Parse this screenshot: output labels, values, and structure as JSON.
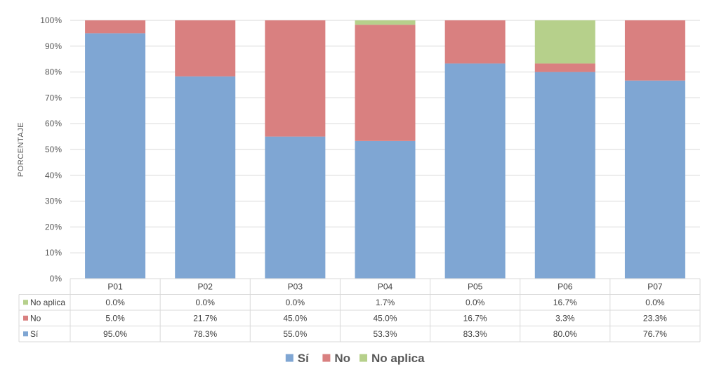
{
  "chart_data": {
    "type": "bar",
    "stacked": true,
    "title": "",
    "xlabel": "",
    "ylabel": "PORCENTAJE",
    "ylim": [
      0,
      100
    ],
    "yticks": [
      "0%",
      "10%",
      "20%",
      "30%",
      "40%",
      "50%",
      "60%",
      "70%",
      "80%",
      "90%",
      "100%"
    ],
    "grid": true,
    "legend_position": "bottom",
    "categories": [
      "P01",
      "P02",
      "P03",
      "P04",
      "P05",
      "P06",
      "P07"
    ],
    "series": [
      {
        "name": "Sí",
        "color": "#7fa6d3",
        "values": [
          95.0,
          78.3,
          55.0,
          53.3,
          83.3,
          80.0,
          76.7
        ],
        "labels": [
          "95.0%",
          "78.3%",
          "55.0%",
          "53.3%",
          "83.3%",
          "80.0%",
          "76.7%"
        ]
      },
      {
        "name": "No",
        "color": "#d98080",
        "values": [
          5.0,
          21.7,
          45.0,
          45.0,
          16.7,
          3.3,
          23.3
        ],
        "labels": [
          "5.0%",
          "21.7%",
          "45.0%",
          "45.0%",
          "16.7%",
          "3.3%",
          "23.3%"
        ]
      },
      {
        "name": "No aplica",
        "color": "#b6d08b",
        "values": [
          0.0,
          0.0,
          0.0,
          1.7,
          0.0,
          16.7,
          0.0
        ],
        "labels": [
          "0.0%",
          "0.0%",
          "0.0%",
          "1.7%",
          "0.0%",
          "16.7%",
          "0.0%"
        ]
      }
    ],
    "table_row_order": [
      "No aplica",
      "No",
      "Sí"
    ]
  }
}
